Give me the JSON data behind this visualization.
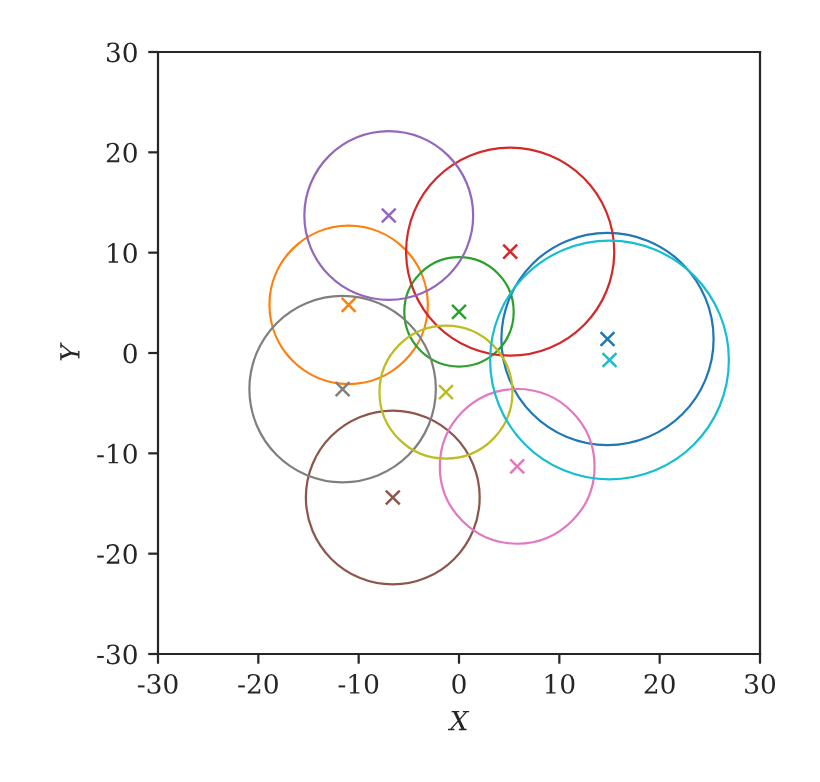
{
  "chart_data": {
    "type": "bubble",
    "xlabel": "X",
    "ylabel": "Y",
    "xlim": [
      -30,
      30
    ],
    "ylim": [
      -30,
      30
    ],
    "xticks": [
      -30,
      -20,
      -10,
      0,
      10,
      20,
      30
    ],
    "yticks": [
      -30,
      -20,
      -10,
      0,
      10,
      20,
      30
    ],
    "grid": false,
    "legend": false,
    "series": [
      {
        "color": "#1f77b4",
        "x": [
          14.8
        ],
        "values": [
          1.4
        ],
        "sizes": [
          0.79
        ]
      },
      {
        "color": "#ff7f0e",
        "x": [
          -11.0
        ],
        "values": [
          4.8
        ],
        "sizes": [
          0.44
        ]
      },
      {
        "color": "#2ca02c",
        "x": [
          0.0
        ],
        "values": [
          4.1
        ],
        "sizes": [
          0.21
        ]
      },
      {
        "color": "#d62728",
        "x": [
          5.1
        ],
        "values": [
          10.1
        ],
        "sizes": [
          0.76
        ]
      },
      {
        "color": "#9467bd",
        "x": [
          -7.0
        ],
        "values": [
          13.7
        ],
        "sizes": [
          0.5
        ]
      },
      {
        "color": "#8c564b",
        "x": [
          -6.6
        ],
        "values": [
          -14.4
        ],
        "sizes": [
          0.53
        ]
      },
      {
        "color": "#e377c2",
        "x": [
          5.8
        ],
        "values": [
          -11.3
        ],
        "sizes": [
          0.42
        ]
      },
      {
        "color": "#7f7f7f",
        "x": [
          -11.6
        ],
        "values": [
          -3.6
        ],
        "sizes": [
          0.61
        ]
      },
      {
        "color": "#bcbd22",
        "x": [
          -1.3
        ],
        "values": [
          -3.9
        ],
        "sizes": [
          0.31
        ]
      },
      {
        "color": "#17becf",
        "x": [
          15.0
        ],
        "values": [
          -0.7
        ],
        "sizes": [
          1.0
        ]
      }
    ]
  }
}
